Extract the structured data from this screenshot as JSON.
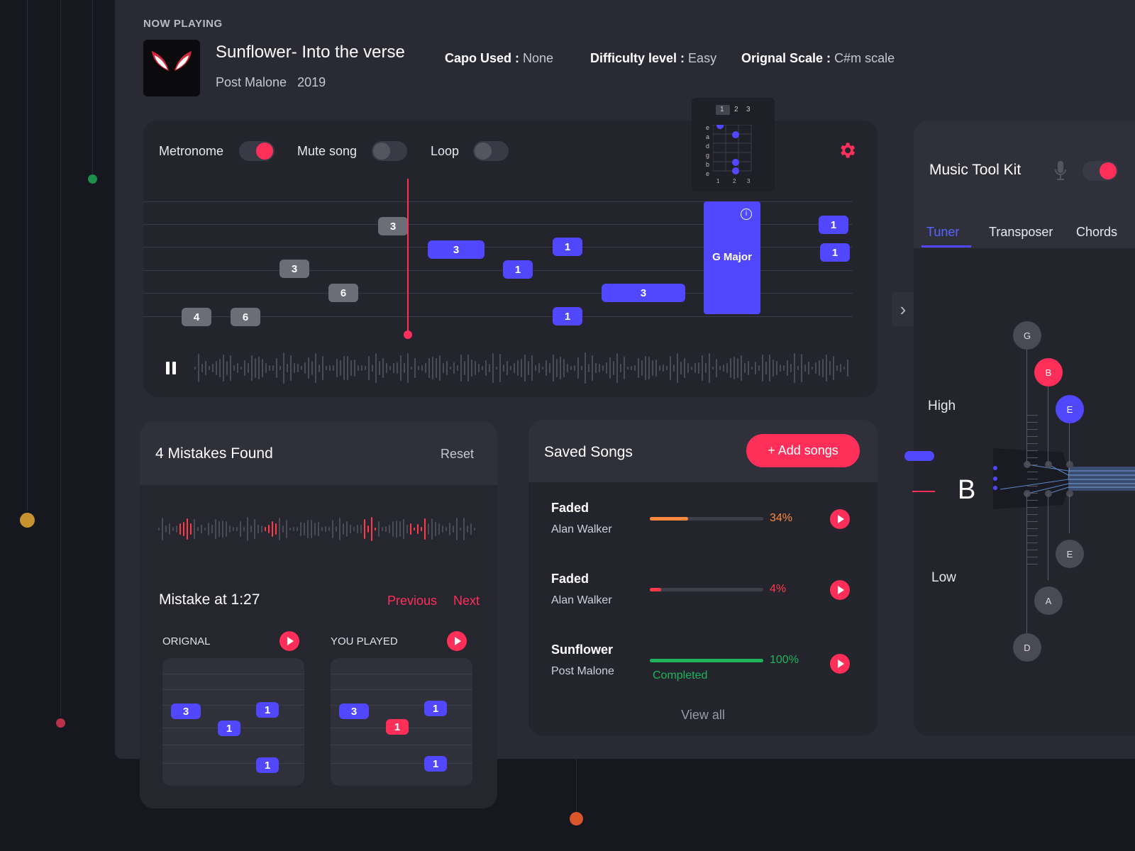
{
  "now_playing": {
    "label": "NOW PLAYING",
    "title": "Sunflower- Into the verse",
    "artist": "Post Malone",
    "year": "2019",
    "capo_label": "Capo Used :",
    "capo_value": "None",
    "difficulty_label": "Difficulty level :",
    "difficulty_value": "Easy",
    "scale_label": "Orignal Scale :",
    "scale_value": "C#m scale"
  },
  "controls": {
    "metronome": "Metronome",
    "mute": "Mute song",
    "loop": "Loop",
    "metronome_on": true,
    "mute_on": false,
    "loop_on": false
  },
  "chord_popup": {
    "tabs": [
      "1",
      "2",
      "3"
    ],
    "strings": [
      "e",
      "a",
      "d",
      "g",
      "b",
      "e"
    ],
    "frets": [
      "1",
      "2",
      "3"
    ]
  },
  "chord_block": {
    "label": "G Major"
  },
  "notes": {
    "grey": [
      "4",
      "6",
      "3",
      "6",
      "3"
    ],
    "blue": [
      "3",
      "1",
      "1",
      "1",
      "3",
      "1",
      "1"
    ]
  },
  "mistakes": {
    "title": "4 Mistakes Found",
    "reset": "Reset",
    "mistake_at": "Mistake at 1:27",
    "previous": "Previous",
    "next": "Next",
    "original_label": "ORIGNAL",
    "you_played_label": "YOU PLAYED",
    "original_notes": [
      "3",
      "1",
      "1",
      "1"
    ],
    "played_notes": [
      "3",
      "1",
      "1",
      "1"
    ]
  },
  "saved": {
    "title": "Saved Songs",
    "add_button": "+ Add songs",
    "view_all": "View all",
    "songs": [
      {
        "title": "Faded",
        "artist": "Alan Walker",
        "percent": "34%",
        "progress": 0.34,
        "color": "#ff8a3d",
        "status": ""
      },
      {
        "title": "Faded",
        "artist": "Alan Walker",
        "percent": "4%",
        "progress": 0.04,
        "color": "#ff3a4a",
        "status": ""
      },
      {
        "title": "Sunflower",
        "artist": "Post Malone",
        "percent": "100%",
        "progress": 1.0,
        "color": "#1fb45a",
        "status": "Completed"
      }
    ]
  },
  "toolkit": {
    "title": "Music Tool Kit",
    "tabs": [
      "Tuner",
      "Transposer",
      "Chords"
    ],
    "active_tab": "Tuner",
    "high": "High",
    "low": "Low",
    "current_note": "B",
    "pegs_top": [
      "G",
      "B",
      "E"
    ],
    "pegs_bottom": [
      "E",
      "A",
      "D"
    ],
    "mic_icon": "microphone-icon",
    "toggle_on": true
  },
  "colors": {
    "accent": "#ff2f5a",
    "blue": "#5047ff",
    "bg": "#2a2a34"
  }
}
